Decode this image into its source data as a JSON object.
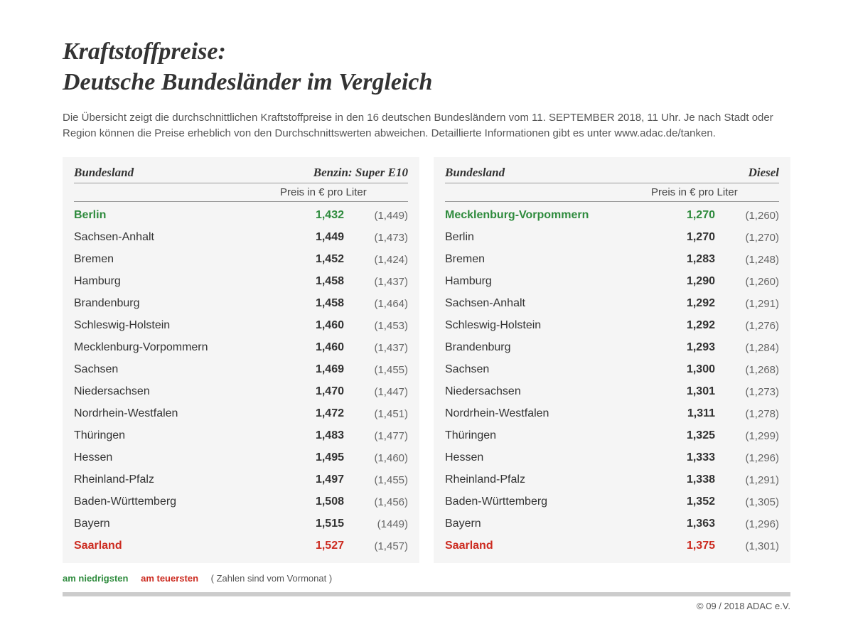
{
  "title_line1": "Kraftstoffpreise:",
  "title_line2": "Deutsche Bundesländer im Vergleich",
  "description": "Die Übersicht zeigt die durchschnittlichen Kraftstoffpreise in den 16 deutschen Bundesländern vom 11. SEPTEMBER 2018, 11 Uhr. Je nach Stadt oder Region können die Preise erheblich von den Durchschnittswerten abweichen. Detaillierte Informationen gibt es unter www.adac.de/tanken.",
  "unit_label": "Preis in € pro Liter",
  "col_state": "Bundesland",
  "benzin": {
    "fuel_label": "Benzin:  Super E10",
    "rows": [
      {
        "name": "Berlin",
        "price": "1,432",
        "prev": "(1,449)",
        "hl": "low"
      },
      {
        "name": "Sachsen-Anhalt",
        "price": "1,449",
        "prev": "(1,473)",
        "hl": ""
      },
      {
        "name": "Bremen",
        "price": "1,452",
        "prev": "(1,424)",
        "hl": ""
      },
      {
        "name": "Hamburg",
        "price": "1,458",
        "prev": "(1,437)",
        "hl": ""
      },
      {
        "name": "Brandenburg",
        "price": "1,458",
        "prev": "(1,464)",
        "hl": ""
      },
      {
        "name": "Schleswig-Holstein",
        "price": "1,460",
        "prev": "(1,453)",
        "hl": ""
      },
      {
        "name": "Mecklenburg-Vorpommern",
        "price": "1,460",
        "prev": "(1,437)",
        "hl": ""
      },
      {
        "name": "Sachsen",
        "price": "1,469",
        "prev": "(1,455)",
        "hl": ""
      },
      {
        "name": "Niedersachsen",
        "price": "1,470",
        "prev": "(1,447)",
        "hl": ""
      },
      {
        "name": "Nordrhein-Westfalen",
        "price": "1,472",
        "prev": "(1,451)",
        "hl": ""
      },
      {
        "name": "Thüringen",
        "price": "1,483",
        "prev": "(1,477)",
        "hl": ""
      },
      {
        "name": "Hessen",
        "price": "1,495",
        "prev": "(1,460)",
        "hl": ""
      },
      {
        "name": "Rheinland-Pfalz",
        "price": "1,497",
        "prev": "(1,455)",
        "hl": ""
      },
      {
        "name": "Baden-Württemberg",
        "price": "1,508",
        "prev": "(1,456)",
        "hl": ""
      },
      {
        "name": "Bayern",
        "price": "1,515",
        "prev": "(1449)",
        "hl": ""
      },
      {
        "name": "Saarland",
        "price": "1,527",
        "prev": "(1,457)",
        "hl": "high"
      }
    ]
  },
  "diesel": {
    "fuel_label": "Diesel",
    "rows": [
      {
        "name": "Mecklenburg-Vorpommern",
        "price": "1,270",
        "prev": "(1,260)",
        "hl": "low"
      },
      {
        "name": "Berlin",
        "price": "1,270",
        "prev": "(1,270)",
        "hl": ""
      },
      {
        "name": "Bremen",
        "price": "1,283",
        "prev": "(1,248)",
        "hl": ""
      },
      {
        "name": "Hamburg",
        "price": "1,290",
        "prev": "(1,260)",
        "hl": ""
      },
      {
        "name": "Sachsen-Anhalt",
        "price": "1,292",
        "prev": "(1,291)",
        "hl": ""
      },
      {
        "name": "Schleswig-Holstein",
        "price": "1,292",
        "prev": "(1,276)",
        "hl": ""
      },
      {
        "name": "Brandenburg",
        "price": "1,293",
        "prev": "(1,284)",
        "hl": ""
      },
      {
        "name": "Sachsen",
        "price": "1,300",
        "prev": "(1,268)",
        "hl": ""
      },
      {
        "name": "Niedersachsen",
        "price": "1,301",
        "prev": "(1,273)",
        "hl": ""
      },
      {
        "name": "Nordrhein-Westfalen",
        "price": "1,311",
        "prev": "(1,278)",
        "hl": ""
      },
      {
        "name": "Thüringen",
        "price": "1,325",
        "prev": "(1,299)",
        "hl": ""
      },
      {
        "name": "Hessen",
        "price": "1,333",
        "prev": "(1,296)",
        "hl": ""
      },
      {
        "name": "Rheinland-Pfalz",
        "price": "1,338",
        "prev": "(1,291)",
        "hl": ""
      },
      {
        "name": "Baden-Württemberg",
        "price": "1,352",
        "prev": "(1,305)",
        "hl": ""
      },
      {
        "name": "Bayern",
        "price": "1,363",
        "prev": "(1,296)",
        "hl": ""
      },
      {
        "name": "Saarland",
        "price": "1,375",
        "prev": "(1,301)",
        "hl": "high"
      }
    ]
  },
  "legend_low": "am niedrigsten",
  "legend_high": "am teuersten",
  "legend_note": "( Zahlen sind vom Vormonat )",
  "credit": "© 09 / 2018 ADAC e.V.",
  "colors": {
    "low": "#2e8b3d",
    "high": "#cc2a1f",
    "bg_panel": "#f5f5f5",
    "rule": "#cccccc",
    "text": "#333333"
  }
}
